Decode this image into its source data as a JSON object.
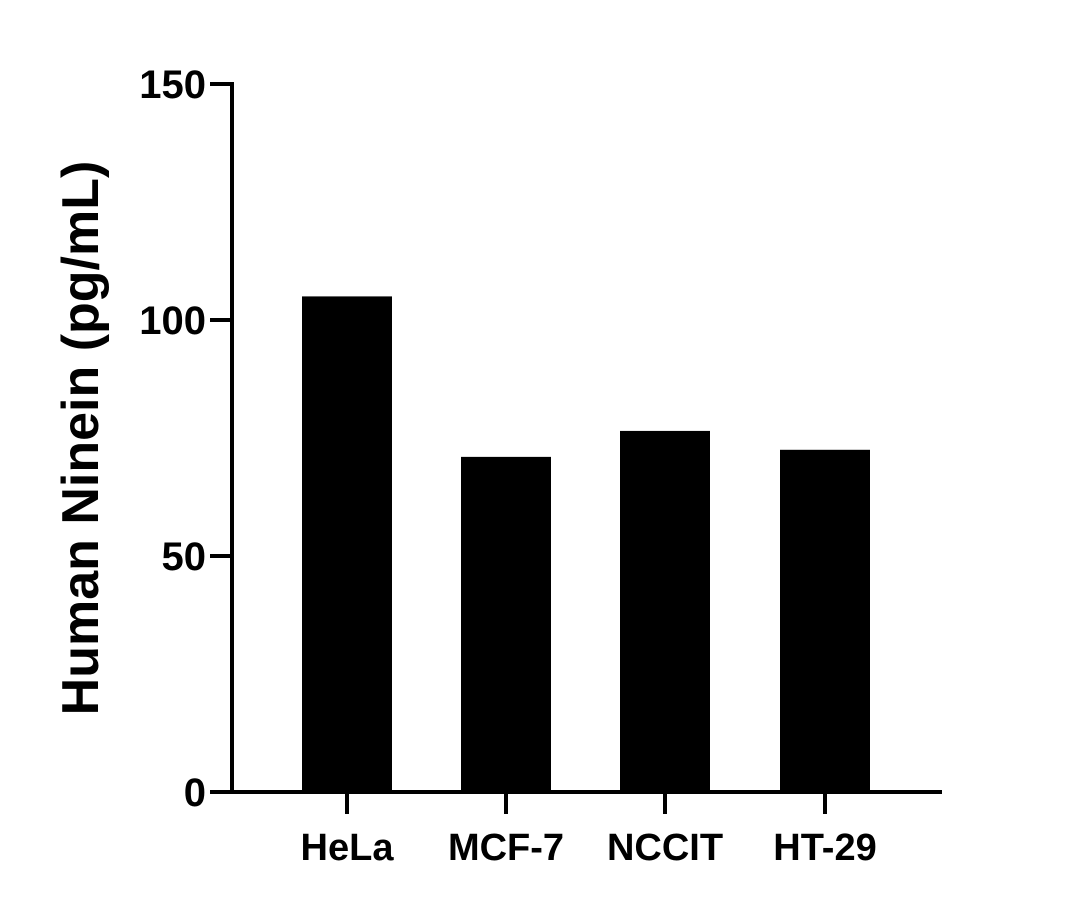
{
  "chart_data": {
    "type": "bar",
    "title": "",
    "xlabel": "",
    "ylabel": "Human Ninein (pg/mL)",
    "categories": [
      "HeLa",
      "MCF-7",
      "NCCIT",
      "HT-29"
    ],
    "values": [
      105,
      71,
      76.5,
      72.5
    ],
    "ylim": [
      0,
      150
    ],
    "yticks": [
      0,
      50,
      100,
      150
    ],
    "grid": false,
    "legend": "none",
    "bar_color": "#000000",
    "axis_color": "#000000"
  }
}
